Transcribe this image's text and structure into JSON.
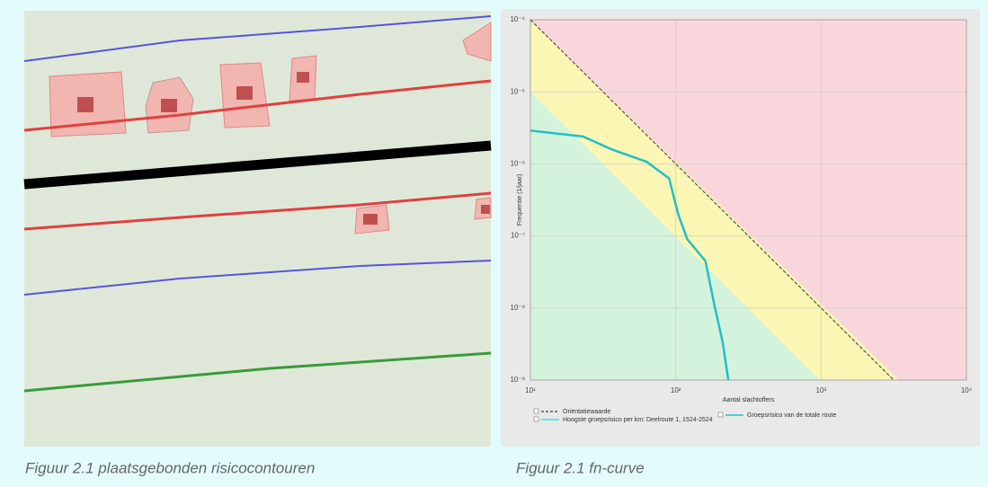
{
  "figures": [
    {
      "caption": "Figuur 2.1 plaatsgebonden risicocontouren"
    },
    {
      "caption": "Figuur 2.1 fn-curve"
    }
  ],
  "chart_data": {
    "type": "line",
    "log_x": true,
    "log_y": true,
    "grid": true,
    "xlabel": "Aantal slachtoffers",
    "ylabel": "Frequentie (1/jaar)",
    "xlim": [
      10,
      10000
    ],
    "ylim": [
      1e-09,
      0.0001
    ],
    "xticks": [
      {
        "value": 10,
        "label": "10¹"
      },
      {
        "value": 100,
        "label": "10²"
      },
      {
        "value": 1000,
        "label": "10³"
      },
      {
        "value": 10000,
        "label": "10⁴"
      }
    ],
    "yticks": [
      {
        "value": 0.0001,
        "label": "10⁻⁴"
      },
      {
        "value": 1e-05,
        "label": "10⁻⁵"
      },
      {
        "value": 1e-06,
        "label": "10⁻⁶"
      },
      {
        "value": 1e-07,
        "label": "10⁻⁷"
      },
      {
        "value": 1e-08,
        "label": "10⁻⁸"
      },
      {
        "value": 1e-09,
        "label": "10⁻⁹"
      }
    ],
    "series": [
      {
        "name": "Oriëntatiewaarde",
        "color": "#555555",
        "dashed": true,
        "x": [
          10,
          3162
        ],
        "values": [
          0.0001,
          1e-09
        ]
      },
      {
        "name": "Groepsrisico van de totale route",
        "color": "#20c0c8",
        "x": [
          10,
          23,
          36,
          63,
          90,
          104,
          120,
          160,
          185,
          210,
          230
        ],
        "values": [
          2.9e-06,
          2.4e-06,
          1.6e-06,
          1.07e-06,
          6.3e-07,
          2e-07,
          9e-08,
          4.5e-08,
          1.07e-08,
          3.4e-09,
          1e-09
        ]
      }
    ],
    "legend_extra": {
      "name": "Hoogste groepsrisico per km: Deelroute 1, 1524-2524",
      "color": "#40e0e8"
    }
  }
}
